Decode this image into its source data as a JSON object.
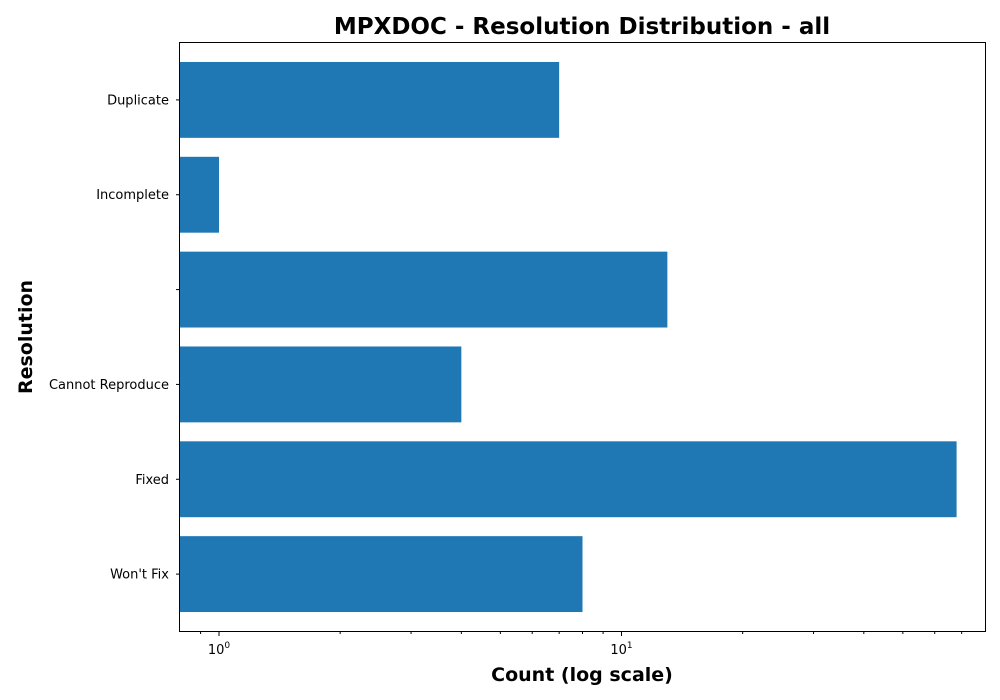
{
  "chart_data": {
    "type": "bar",
    "orientation": "horizontal",
    "title": "MPXDOC - Resolution Distribution - all",
    "xlabel": "Count (log scale)",
    "ylabel": "Resolution",
    "x_scale": "log",
    "xlim": [
      0.8,
      80
    ],
    "categories": [
      "Won't Fix",
      "Fixed",
      "Cannot Reproduce",
      "",
      "Incomplete",
      "Duplicate"
    ],
    "values": [
      8,
      68,
      4,
      13,
      1,
      7
    ],
    "x_major_ticks": [
      {
        "value": 1,
        "base": "10",
        "exp": "0"
      },
      {
        "value": 10,
        "base": "10",
        "exp": "1"
      }
    ],
    "x_minor_ticks": [
      0.9,
      2,
      3,
      4,
      5,
      6,
      7,
      8,
      9,
      20,
      30,
      40,
      50,
      60,
      70
    ],
    "grid": false,
    "legend": "none",
    "bar_color": "#1f77b4"
  }
}
